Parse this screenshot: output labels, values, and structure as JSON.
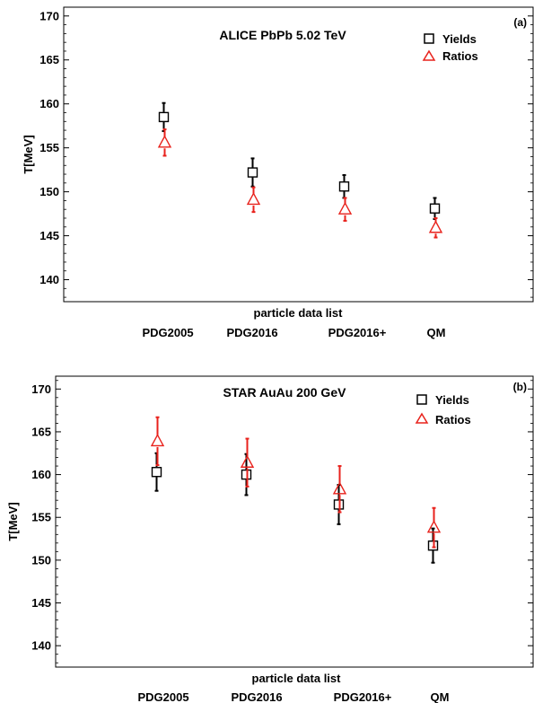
{
  "colors": {
    "yields": "#000000",
    "ratios": "#e8221c"
  },
  "chart_data": [
    {
      "type": "scatter",
      "title": "ALICE PbPb 5.02 TeV",
      "panel_label": "(a)",
      "xlabel": "particle data list",
      "ylabel": "T[MeV]",
      "categories": [
        "PDG2005",
        "PDG2016",
        "PDG2016+",
        "QM"
      ],
      "ylim": [
        137.5,
        171
      ],
      "yticks": [
        140,
        145,
        150,
        155,
        160,
        165,
        170
      ],
      "grid": false,
      "legend_position": "top-right",
      "series": [
        {
          "name": "Yields",
          "marker": "square",
          "color": "#000000",
          "values": [
            158.5,
            152.2,
            150.6,
            148.1
          ],
          "errors": [
            1.6,
            1.6,
            1.3,
            1.2
          ]
        },
        {
          "name": "Ratios",
          "marker": "triangle",
          "color": "#e8221c",
          "values": [
            155.6,
            149.1,
            148.0,
            145.9
          ],
          "errors": [
            1.5,
            1.4,
            1.3,
            1.1
          ]
        }
      ]
    },
    {
      "type": "scatter",
      "title": "STAR AuAu 200 GeV",
      "panel_label": "(b)",
      "xlabel": "particle data list",
      "ylabel": "T[MeV]",
      "categories": [
        "PDG2005",
        "PDG2016",
        "PDG2016+",
        "QM"
      ],
      "ylim": [
        137.5,
        171.5
      ],
      "yticks": [
        140,
        145,
        150,
        155,
        160,
        165,
        170
      ],
      "grid": false,
      "legend_position": "top-right",
      "series": [
        {
          "name": "Yields",
          "marker": "square",
          "color": "#000000",
          "values": [
            160.3,
            160.0,
            156.5,
            151.7
          ],
          "errors": [
            2.2,
            2.4,
            2.3,
            2.0
          ]
        },
        {
          "name": "Ratios",
          "marker": "triangle",
          "color": "#e8221c",
          "values": [
            163.9,
            161.4,
            158.3,
            153.8
          ],
          "errors": [
            2.8,
            2.8,
            2.7,
            2.3
          ]
        }
      ]
    }
  ]
}
